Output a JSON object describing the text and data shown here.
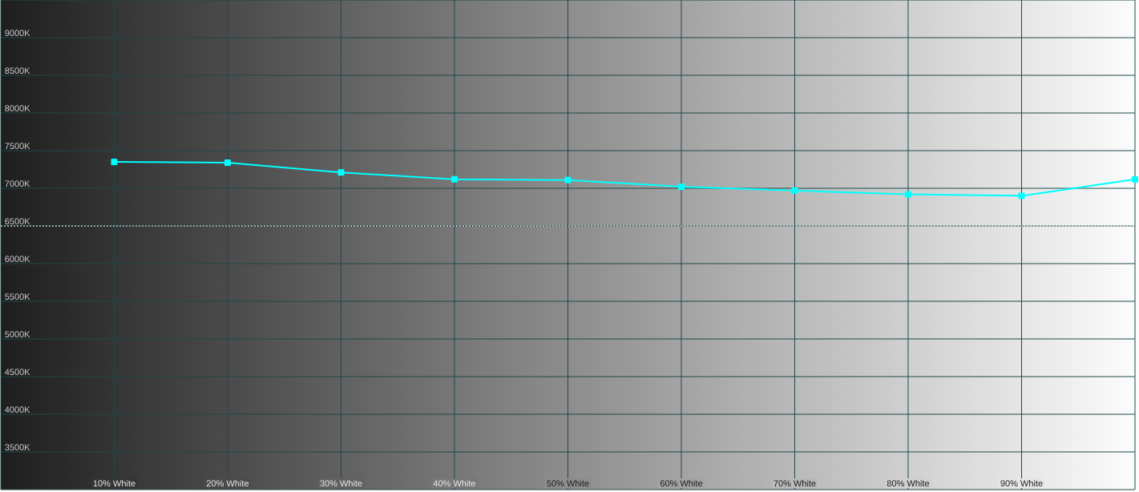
{
  "chart_data": {
    "type": "line",
    "x": [
      10,
      20,
      30,
      40,
      50,
      60,
      70,
      80,
      90,
      100
    ],
    "series": [
      {
        "color": "#00ffff",
        "values": [
          7350,
          7340,
          7210,
          7120,
          7110,
          7020,
          6970,
          6920,
          6900,
          7120
        ]
      }
    ],
    "xlim": [
      0,
      100
    ],
    "ylim": [
      3000,
      9500
    ],
    "xticks": [
      {
        "value": 10,
        "label": "10% White"
      },
      {
        "value": 20,
        "label": "20% White"
      },
      {
        "value": 30,
        "label": "30% White"
      },
      {
        "value": 40,
        "label": "40% White"
      },
      {
        "value": 50,
        "label": "50% White"
      },
      {
        "value": 60,
        "label": "60% White"
      },
      {
        "value": 70,
        "label": "70% White"
      },
      {
        "value": 80,
        "label": "80% White"
      },
      {
        "value": 90,
        "label": "90% White"
      }
    ],
    "yticks": [
      {
        "value": 3500,
        "label": "3500K"
      },
      {
        "value": 4000,
        "label": "4000K"
      },
      {
        "value": 4500,
        "label": "4500K"
      },
      {
        "value": 5000,
        "label": "5000K"
      },
      {
        "value": 5500,
        "label": "5500K"
      },
      {
        "value": 6000,
        "label": "6000K"
      },
      {
        "value": 6500,
        "label": "6500K"
      },
      {
        "value": 7000,
        "label": "7000K"
      },
      {
        "value": 7500,
        "label": "7500K"
      },
      {
        "value": 8000,
        "label": "8000K"
      },
      {
        "value": 8500,
        "label": "8500K"
      },
      {
        "value": 9000,
        "label": "9000K"
      }
    ],
    "grid": true,
    "marker": "square",
    "line_style": "solid",
    "ref_lines": [
      {
        "axis": "y",
        "value": 6500,
        "color": "#ffffff",
        "line_style": "dashed"
      }
    ]
  }
}
